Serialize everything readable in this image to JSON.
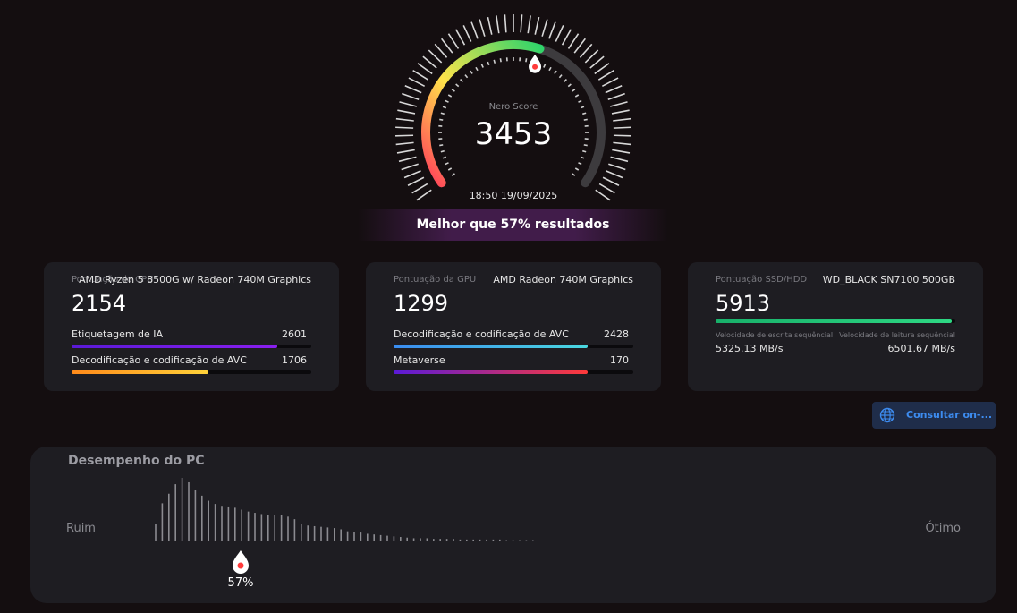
{
  "gauge": {
    "label": "Nero Score",
    "score": "3453",
    "timestamp": "18:50 19/09/2025",
    "fill_fraction": 0.57,
    "colors": [
      "#ff3a5a",
      "#ffe34a",
      "#2fd46a"
    ]
  },
  "banner": {
    "text": "Melhor que 57% resultados"
  },
  "cpu_card": {
    "label": "Pontuação do CPU",
    "name": "AMD Ryzen 5 8500G w/ Radeon 740M Graphics",
    "score": "2154",
    "rows": [
      {
        "label": "Etiquetagem de IA",
        "value": "2601",
        "fraction": 0.86,
        "colors": [
          "#5a1ad8",
          "#8a1ff0"
        ]
      },
      {
        "label": "Decodificação e codificação de AVC",
        "value": "1706",
        "fraction": 0.57,
        "colors": [
          "#ff8a1a",
          "#ffd23a"
        ]
      }
    ]
  },
  "gpu_card": {
    "label": "Pontuação da GPU",
    "name": "AMD Radeon 740M Graphics",
    "score": "1299",
    "rows": [
      {
        "label": "Decodificação e codificação de AVC",
        "value": "2428",
        "fraction": 0.81,
        "colors": [
          "#3a8cf0",
          "#4ad8e0"
        ]
      },
      {
        "label": "Metaverse",
        "value": "170",
        "fraction": 0.81,
        "colors": [
          "#5a1ad8",
          "#ff3a3a"
        ]
      }
    ]
  },
  "ssd_card": {
    "label": "Pontuação SSD/HDD",
    "name": "WD_BLACK SN7100 500GB",
    "score": "5913",
    "fraction": 0.985,
    "write_label": "Velocidade de escrita sequêncial",
    "write_value": "5325.13 MB/s",
    "read_label": "Velocidade de leitura sequêncial",
    "read_value": "6501.67 MB/s"
  },
  "online_button": {
    "label": "Consultar on-..."
  },
  "performance": {
    "title": "Desempenho do PC",
    "low_label": "Ruim",
    "high_label": "Ótimo",
    "marker_percent": "57%",
    "marker_fraction": 0.195,
    "histogram": [
      0.27,
      0.6,
      0.75,
      0.9,
      1.0,
      0.93,
      0.81,
      0.72,
      0.64,
      0.59,
      0.56,
      0.55,
      0.53,
      0.5,
      0.47,
      0.45,
      0.43,
      0.42,
      0.42,
      0.41,
      0.39,
      0.35,
      0.28,
      0.25,
      0.24,
      0.23,
      0.22,
      0.21,
      0.19,
      0.16,
      0.15,
      0.14,
      0.12,
      0.11,
      0.1,
      0.09,
      0.08,
      0.07,
      0.06,
      0.05,
      0.05,
      0.05,
      0.04,
      0.04,
      0.04,
      0.04,
      0.03,
      0.03,
      0.03,
      0.03,
      0.03,
      0.03,
      0.03,
      0.02,
      0.02,
      0.02,
      0.02,
      0.02
    ]
  }
}
